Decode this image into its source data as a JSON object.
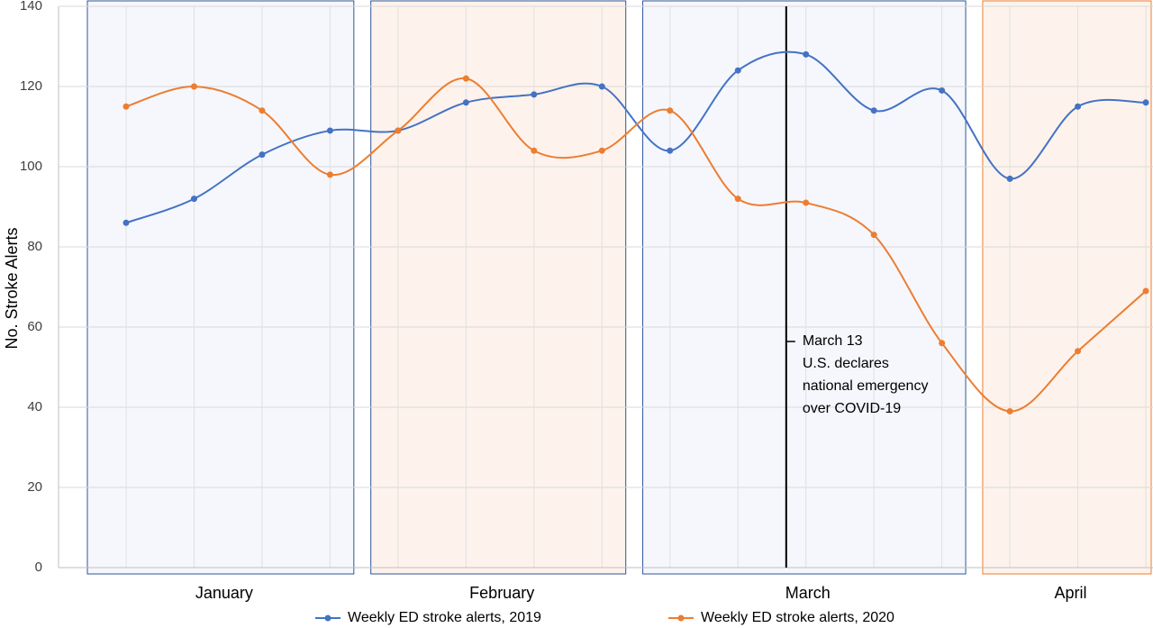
{
  "chart_data": {
    "type": "line",
    "y_label": "No. Stroke Alerts",
    "categories": [
      null,
      null,
      null,
      null,
      null,
      null,
      null,
      null,
      null,
      null,
      null,
      null,
      null,
      null,
      null,
      null
    ],
    "months": [
      {
        "label": "January",
        "first": 0,
        "last": 3,
        "color": "#f5f7fc",
        "border": "#2f5597"
      },
      {
        "label": "February",
        "first": 4,
        "last": 7,
        "color": "#fdf3ec",
        "border": "#2f5597"
      },
      {
        "label": "March",
        "first": 8,
        "last": 12,
        "color": "#f5f7fc",
        "border": "#2f5597"
      },
      {
        "label": "April",
        "first": 13,
        "last": 15,
        "color": "#fdf3ec",
        "border": "#ed7d31"
      }
    ],
    "series": [
      {
        "name": "Weekly ED stroke alerts, 2019",
        "color": "#4472c4",
        "values": [
          86,
          92,
          103,
          109,
          109,
          116,
          118,
          120,
          104,
          124,
          128,
          114,
          119,
          97,
          115,
          116
        ]
      },
      {
        "name": "Weekly ED stroke alerts, 2020",
        "color": "#ed7d31",
        "values": [
          115,
          120,
          114,
          98,
          109,
          122,
          104,
          104,
          114,
          92,
          91,
          83,
          56,
          39,
          54,
          69
        ]
      }
    ],
    "annotation": {
      "x": 9.71,
      "lines": [
        "March 13",
        "U.S. declares",
        "national emergency",
        "over COVID-19"
      ]
    },
    "ylim": [
      0,
      140
    ],
    "yticks": [
      0,
      20,
      40,
      60,
      80,
      100,
      120,
      140
    ],
    "grid": true
  }
}
